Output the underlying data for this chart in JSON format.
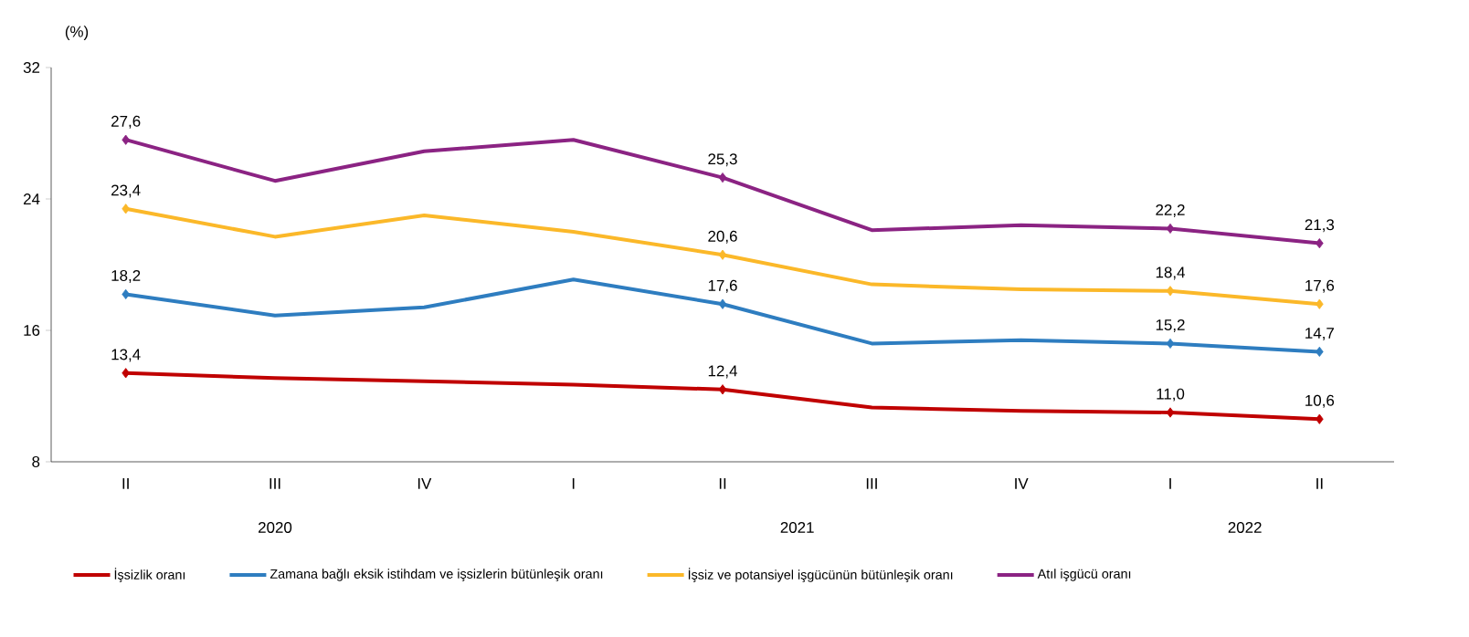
{
  "chart_data": {
    "type": "line",
    "ylabel": "(%)",
    "categories": [
      "II",
      "III",
      "IV",
      "I",
      "II",
      "III",
      "IV",
      "I",
      "II"
    ],
    "annotations": [
      "2020",
      "2021",
      "2022"
    ],
    "ylim": [
      8,
      32
    ],
    "yticks": [
      8,
      16,
      24,
      32
    ],
    "grid": false,
    "legend": "bottom",
    "line_style": "solid",
    "series": [
      {
        "name": "İşsizlik oranı",
        "color": "#c00000",
        "values": [
          13.4,
          13.1,
          12.9,
          12.7,
          12.4,
          11.3,
          11.1,
          11.0,
          10.6
        ],
        "value_labels": [
          "13,4",
          null,
          null,
          null,
          "12,4",
          null,
          null,
          "11,0",
          "10,6"
        ]
      },
      {
        "name": "Zamana bağlı eksik istihdam ve işsizlerin bütünleşik oranı",
        "color": "#2e7dc0",
        "values": [
          18.2,
          16.9,
          17.4,
          19.1,
          17.6,
          15.2,
          15.4,
          15.2,
          14.7
        ],
        "value_labels": [
          "18,2",
          null,
          null,
          null,
          "17,6",
          null,
          null,
          "15,2",
          "14,7"
        ]
      },
      {
        "name": "İşsiz ve potansiyel işgücünün bütünleşik oranı",
        "color": "#fbb829",
        "values": [
          23.4,
          21.7,
          23.0,
          22.0,
          20.6,
          18.8,
          18.5,
          18.4,
          17.6
        ],
        "value_labels": [
          "23,4",
          null,
          null,
          null,
          "20,6",
          null,
          null,
          "18,4",
          "17,6"
        ]
      },
      {
        "name": "Atıl işgücü oranı",
        "color": "#8b2383",
        "values": [
          27.6,
          25.1,
          26.9,
          27.6,
          25.3,
          22.1,
          22.4,
          22.2,
          21.3
        ],
        "value_labels": [
          "27,6",
          null,
          null,
          null,
          "25,3",
          null,
          null,
          "22,2",
          "21,3"
        ]
      }
    ]
  }
}
